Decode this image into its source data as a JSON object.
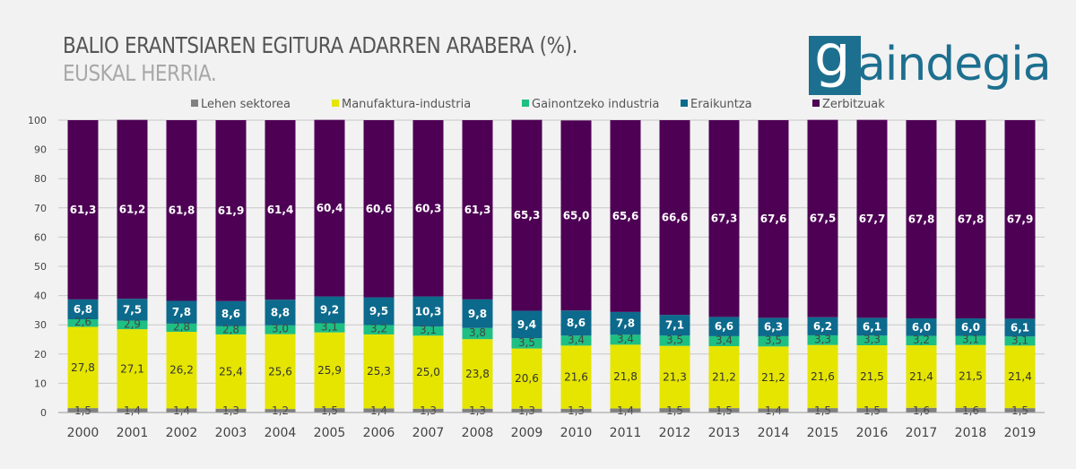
{
  "header": {
    "title": "BALIO ERANTSIAREN EGITURA ADARREN ARABERA (%).",
    "subtitle": "EUSKAL HERRIA.",
    "logo_initial": "g",
    "logo_rest": "aindegia"
  },
  "colors": {
    "lehen": "#808080",
    "manufaktura": "#e5e500",
    "gainontzeko": "#1ebf82",
    "eraikuntza": "#0c6a8c",
    "zerbitzuak": "#4d0054",
    "axis_text": "#444444",
    "grid": "#c8c8c8"
  },
  "chart_data": {
    "type": "bar",
    "stacked": true,
    "title": "BALIO ERANTSIAREN EGITURA ADARREN ARABERA (%).",
    "subtitle": "EUSKAL HERRIA.",
    "legend_position": "top",
    "ylim": [
      0,
      100
    ],
    "yticks": [
      0,
      10,
      20,
      30,
      40,
      50,
      60,
      70,
      80,
      90,
      100
    ],
    "grid": true,
    "categories": [
      "2000",
      "2001",
      "2002",
      "2003",
      "2004",
      "2005",
      "2006",
      "2007",
      "2008",
      "2009",
      "2010",
      "2011",
      "2012",
      "2013",
      "2014",
      "2015",
      "2016",
      "2017",
      "2018",
      "2019"
    ],
    "series": [
      {
        "name": "Lehen sektorea",
        "color_key": "lehen",
        "values": [
          1.5,
          1.4,
          1.4,
          1.3,
          1.2,
          1.5,
          1.4,
          1.3,
          1.3,
          1.3,
          1.3,
          1.4,
          1.5,
          1.5,
          1.4,
          1.5,
          1.5,
          1.6,
          1.6,
          1.5
        ],
        "labels": [
          "1,5",
          "1,4",
          "1,4",
          "1,3",
          "1,2",
          "1,5",
          "1,4",
          "1,3",
          "1,3",
          "1,3",
          "1,3",
          "1,4",
          "1,5",
          "1,5",
          "1,4",
          "1,5",
          "1,5",
          "1,6",
          "1,6",
          "1,5"
        ]
      },
      {
        "name": "Manufaktura-industria",
        "color_key": "manufaktura",
        "values": [
          27.8,
          27.1,
          26.2,
          25.4,
          25.6,
          25.9,
          25.3,
          25.0,
          23.8,
          20.6,
          21.6,
          21.8,
          21.3,
          21.2,
          21.2,
          21.6,
          21.5,
          21.4,
          21.5,
          21.4
        ],
        "labels": [
          "27,8",
          "27,1",
          "26,2",
          "25,4",
          "25,6",
          "25,9",
          "25,3",
          "25,0",
          "23,8",
          "20,6",
          "21,6",
          "21,8",
          "21,3",
          "21,2",
          "21,2",
          "21,6",
          "21,5",
          "21,4",
          "21,5",
          "21,4"
        ]
      },
      {
        "name": "Gainontzeko industria",
        "color_key": "gainontzeko",
        "values": [
          2.6,
          2.9,
          2.8,
          2.8,
          3.0,
          3.1,
          3.2,
          3.1,
          3.8,
          3.5,
          3.4,
          3.4,
          3.5,
          3.4,
          3.5,
          3.3,
          3.3,
          3.2,
          3.1,
          3.1
        ],
        "labels": [
          "2,6",
          "2,9",
          "2,8",
          "2,8",
          "3,0",
          "3,1",
          "3,2",
          "3,1",
          "3,8",
          "3,5",
          "3,4",
          "3,4",
          "3,5",
          "3,4",
          "3,5",
          "3,3",
          "3,3",
          "3,2",
          "3,1",
          "3,1"
        ]
      },
      {
        "name": "Eraikuntza",
        "color_key": "eraikuntza",
        "values": [
          6.8,
          7.5,
          7.8,
          8.6,
          8.8,
          9.2,
          9.5,
          10.3,
          9.8,
          9.4,
          8.6,
          7.8,
          7.1,
          6.6,
          6.3,
          6.2,
          6.1,
          6.0,
          6.0,
          6.1
        ],
        "labels": [
          "6,8",
          "7,5",
          "7,8",
          "8,6",
          "8,8",
          "9,2",
          "9,5",
          "10,3",
          "9,8",
          "9,4",
          "8,6",
          "7,8",
          "7,1",
          "6,6",
          "6,3",
          "6,2",
          "6,1",
          "6,0",
          "6,0",
          "6,1"
        ]
      },
      {
        "name": "Zerbitzuak",
        "color_key": "zerbitzuak",
        "values": [
          61.3,
          61.2,
          61.8,
          61.9,
          61.4,
          60.4,
          60.6,
          60.3,
          61.3,
          65.3,
          65.0,
          65.6,
          66.6,
          67.3,
          67.6,
          67.5,
          67.7,
          67.8,
          67.8,
          67.9
        ],
        "labels": [
          "61,3",
          "61,2",
          "61,8",
          "61,9",
          "61,4",
          "60,4",
          "60,6",
          "60,3",
          "61,3",
          "65,3",
          "65,0",
          "65,6",
          "66,6",
          "67,3",
          "67,6",
          "67,5",
          "67,7",
          "67,8",
          "67,8",
          "67,9"
        ]
      }
    ]
  }
}
